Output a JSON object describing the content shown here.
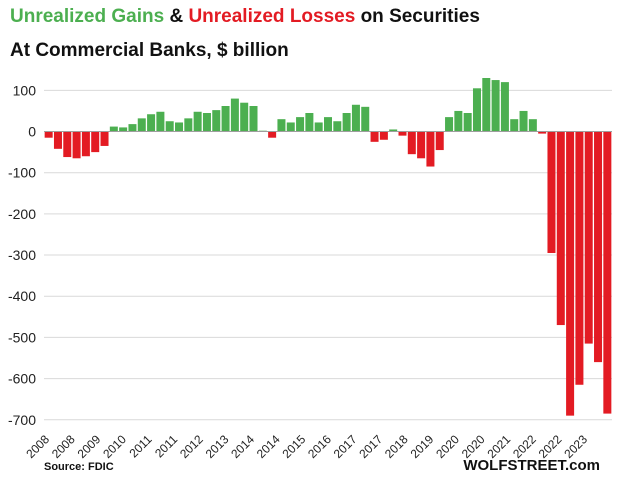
{
  "chart_data": {
    "type": "bar",
    "title_parts": [
      {
        "text": "Unrealized Gains",
        "color": "#4caf50"
      },
      {
        "text": " & ",
        "color": "#111111"
      },
      {
        "text": "Unrealized Losses",
        "color": "#e31b23"
      },
      {
        "text": " on Securities",
        "color": "#111111"
      }
    ],
    "subtitle": "At Commercial  Banks, $ billion",
    "source": "Source: FDIC",
    "brand": "WOLFSTREET.com",
    "ylim": [
      -720,
      130
    ],
    "y_ticks": [
      100,
      0,
      -100,
      -200,
      -300,
      -400,
      -500,
      -600,
      -700
    ],
    "x_tick_labels": [
      "2008",
      "2008",
      "2009",
      "2010",
      "2011",
      "2011",
      "2012",
      "2013",
      "2014",
      "2014",
      "2015",
      "2016",
      "2017",
      "2017",
      "2018",
      "2019",
      "2020",
      "2020",
      "2021",
      "2022",
      "2022",
      "2023"
    ],
    "grid": true,
    "positive_color": "#4caf50",
    "negative_color": "#e31b23",
    "values": [
      -15,
      -42,
      -62,
      -65,
      -60,
      -50,
      -35,
      12,
      10,
      18,
      32,
      42,
      48,
      25,
      22,
      32,
      48,
      45,
      52,
      62,
      80,
      70,
      62,
      2,
      -15,
      30,
      22,
      35,
      45,
      22,
      35,
      25,
      45,
      65,
      60,
      -25,
      -20,
      5,
      -10,
      -55,
      -65,
      -85,
      -45,
      35,
      50,
      45,
      105,
      130,
      125,
      120,
      30,
      50,
      30,
      -5,
      -295,
      -470,
      -690,
      -615,
      -515,
      -560,
      -685
    ]
  }
}
